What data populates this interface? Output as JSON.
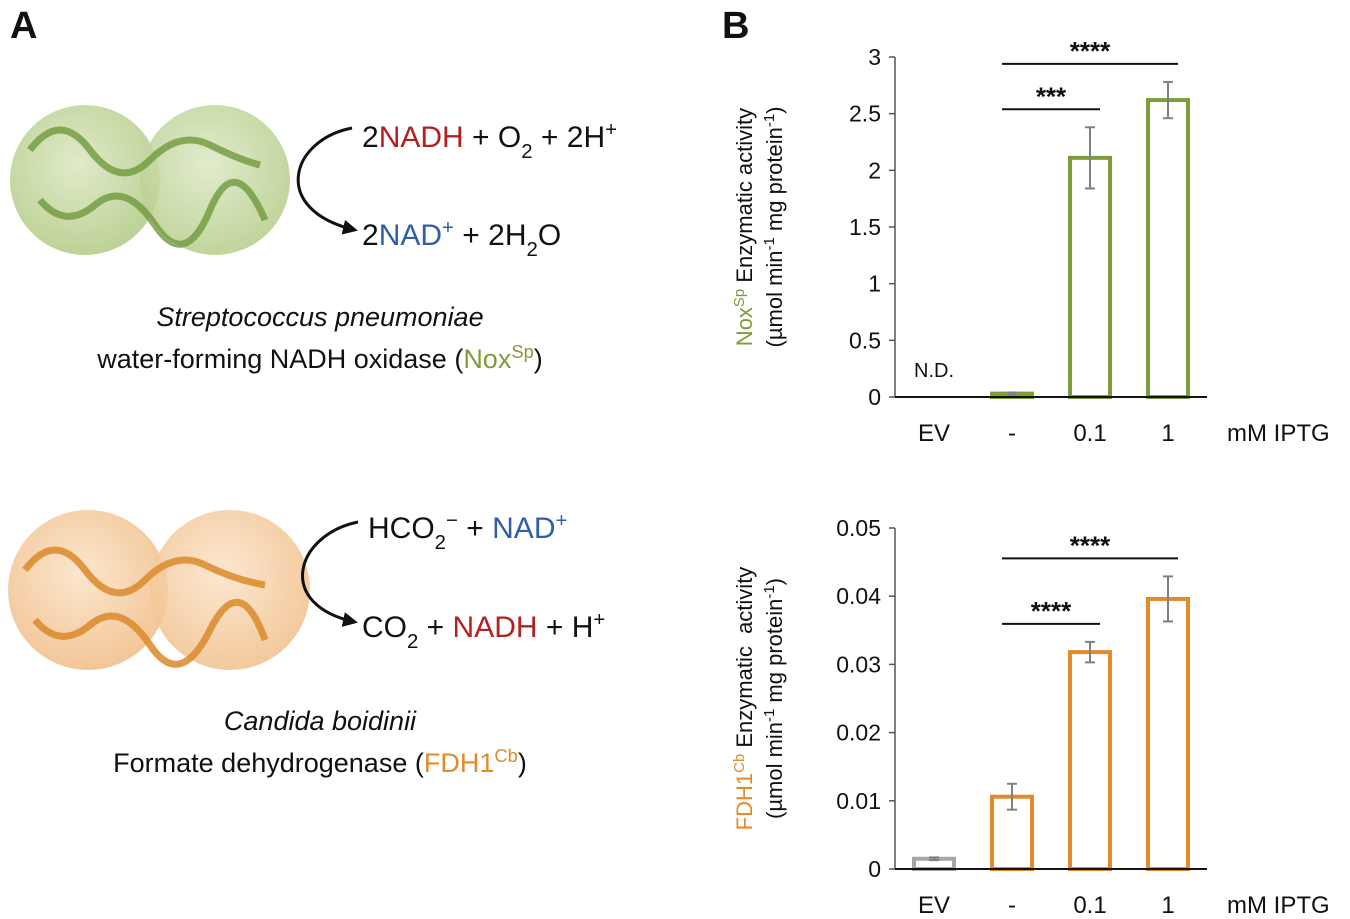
{
  "panel_labels": [
    "A",
    "B"
  ],
  "panel_a": {
    "enzymes": [
      {
        "reactions": [
          [
            {
              "text": "2"
            },
            {
              "text": "NADH",
              "color": "#b3201f"
            },
            {
              "text": " + O"
            },
            {
              "text": "2",
              "script": "sub"
            },
            {
              "text": " + 2H"
            },
            {
              "text": "+",
              "script": "super"
            }
          ],
          [
            {
              "text": "2"
            },
            {
              "text": "NAD",
              "color": "#2f5fa8"
            },
            {
              "text": "+",
              "script": "super",
              "color": "#2f5fa8"
            },
            {
              "text": " + 2H"
            },
            {
              "text": "2",
              "script": "sub"
            },
            {
              "text": "O"
            }
          ]
        ],
        "organism": "Streptococcus pneumoniae",
        "name": [
          {
            "text": "water-forming NADH oxidase ("
          },
          {
            "text": "Nox",
            "color": "#7f9c3a"
          },
          {
            "text": "Sp",
            "script": "super",
            "color": "#7f9c3a"
          },
          {
            "text": ")"
          }
        ]
      },
      {
        "reactions": [
          [
            {
              "text": "HCO"
            },
            {
              "text": "2",
              "script": "sub"
            },
            {
              "text": "−",
              "script": "super"
            },
            {
              "text": " + "
            },
            {
              "text": "NAD",
              "color": "#2f5fa8"
            },
            {
              "text": "+",
              "script": "super",
              "color": "#2f5fa8"
            }
          ],
          [
            {
              "text": "CO"
            },
            {
              "text": "2",
              "script": "sub"
            },
            {
              "text": " + "
            },
            {
              "text": "NADH",
              "color": "#b3201f"
            },
            {
              "text": " + H"
            },
            {
              "text": "+",
              "script": "super"
            }
          ]
        ],
        "organism": "Candida boidinii",
        "name": [
          {
            "text": "Formate dehydrogenase ("
          },
          {
            "text": "FDH1",
            "color": "#e38b2a"
          },
          {
            "text": "Cb",
            "script": "super",
            "color": "#e38b2a"
          },
          {
            "text": ")"
          }
        ]
      }
    ]
  },
  "chart_data": [
    {
      "type": "bar",
      "categories": [
        "EV",
        "-",
        "0.1",
        "1"
      ],
      "values": [
        null,
        0.03,
        2.11,
        2.62
      ],
      "errors": [
        null,
        0.01,
        0.27,
        0.16
      ],
      "colors": [
        "#7f9c3a",
        "#7f9c3a",
        "#7f9c3a",
        "#7f9c3a"
      ],
      "ylim": [
        0,
        3
      ],
      "yticks": [
        0,
        0.5,
        1,
        1.5,
        2,
        2.5,
        3
      ],
      "x_label": "mM IPTG",
      "y_label": [
        [
          {
            "text": "Nox",
            "color": "#7f9c3a"
          },
          {
            "text": "Sp",
            "script": "super",
            "color": "#7f9c3a"
          },
          {
            "text": " Enzymatic activity"
          }
        ],
        [
          {
            "text": "(µmol min"
          },
          {
            "text": "-1",
            "script": "super"
          },
          {
            "text": " mg protein"
          },
          {
            "text": "-1",
            "script": "super"
          },
          {
            "text": ")"
          }
        ]
      ],
      "annotations": [
        {
          "text": "N.D.",
          "category": 0
        }
      ],
      "significance": [
        {
          "between": [
            1,
            2
          ],
          "label": "***"
        },
        {
          "between": [
            1,
            3
          ],
          "label": "****"
        }
      ]
    },
    {
      "type": "bar",
      "categories": [
        "EV",
        "-",
        "0.1",
        "1"
      ],
      "values": [
        0.0015,
        0.0106,
        0.0318,
        0.0396
      ],
      "errors": [
        0.0002,
        0.0019,
        0.0015,
        0.0033
      ],
      "colors": [
        "#a6a6a6",
        "#e38b2a",
        "#e38b2a",
        "#e38b2a"
      ],
      "ylim": [
        0,
        0.05
      ],
      "yticks": [
        0,
        0.01,
        0.02,
        0.03,
        0.04,
        0.05
      ],
      "x_label": "mM IPTG",
      "y_label": [
        [
          {
            "text": "FDH1",
            "color": "#e38b2a"
          },
          {
            "text": "Cb",
            "script": "super",
            "color": "#e38b2a"
          },
          {
            "text": " Enzymatic  activity"
          }
        ],
        [
          {
            "text": "(µmol min"
          },
          {
            "text": "-1",
            "script": "super"
          },
          {
            "text": " mg protein"
          },
          {
            "text": "-1",
            "script": "super"
          },
          {
            "text": ")"
          }
        ]
      ],
      "annotations": [],
      "significance": [
        {
          "between": [
            1,
            2
          ],
          "label": "****"
        },
        {
          "between": [
            1,
            3
          ],
          "label": "****"
        }
      ]
    }
  ]
}
